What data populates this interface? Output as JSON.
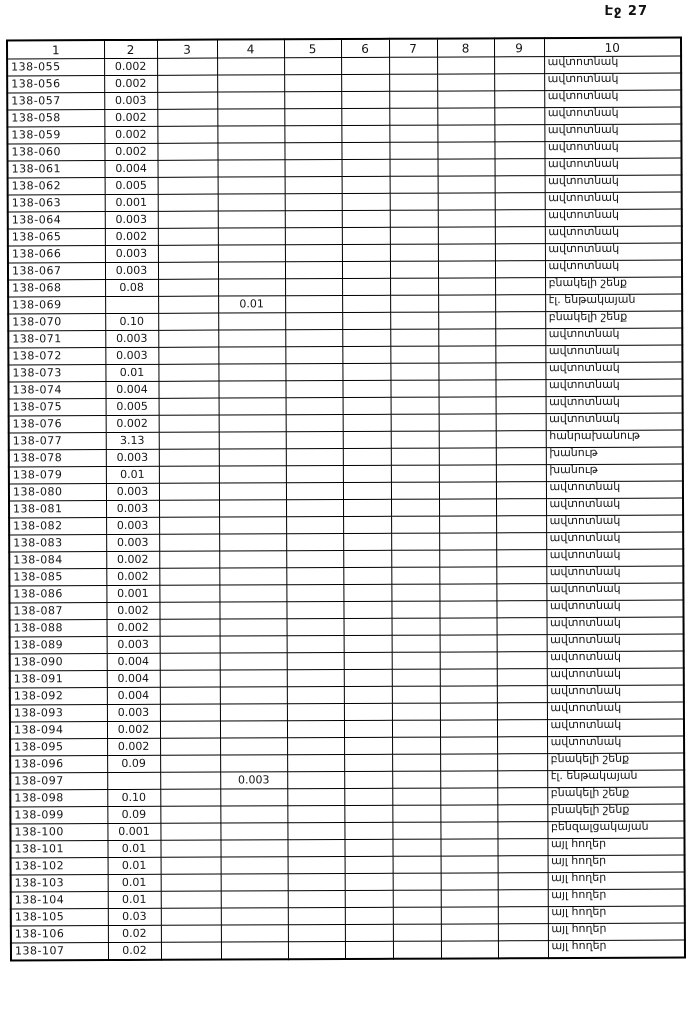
{
  "page_label": "Էջ 27",
  "table": {
    "headers": [
      "1",
      "2",
      "3",
      "4",
      "5",
      "6",
      "7",
      "8",
      "9",
      "10"
    ],
    "rows": [
      {
        "id": "138-055",
        "c2": "0.002",
        "c4": "",
        "c10": "ավտոտնակ"
      },
      {
        "id": "138-056",
        "c2": "0.002",
        "c4": "",
        "c10": "ավտոտնակ"
      },
      {
        "id": "138-057",
        "c2": "0.003",
        "c4": "",
        "c10": "ավտոտնակ"
      },
      {
        "id": "138-058",
        "c2": "0.002",
        "c4": "",
        "c10": "ավտոտնակ"
      },
      {
        "id": "138-059",
        "c2": "0.002",
        "c4": "",
        "c10": "ավտոտնակ"
      },
      {
        "id": "138-060",
        "c2": "0.002",
        "c4": "",
        "c10": "ավտոտնակ"
      },
      {
        "id": "138-061",
        "c2": "0.004",
        "c4": "",
        "c10": "ավտոտնակ"
      },
      {
        "id": "138-062",
        "c2": "0.005",
        "c4": "",
        "c10": "ավտոտնակ"
      },
      {
        "id": "138-063",
        "c2": "0.001",
        "c4": "",
        "c10": "ավտոտնակ"
      },
      {
        "id": "138-064",
        "c2": "0.003",
        "c4": "",
        "c10": "ավտոտնակ"
      },
      {
        "id": "138-065",
        "c2": "0.002",
        "c4": "",
        "c10": "ավտոտնակ"
      },
      {
        "id": "138-066",
        "c2": "0.003",
        "c4": "",
        "c10": "ավտոտնակ"
      },
      {
        "id": "138-067",
        "c2": "0.003",
        "c4": "",
        "c10": "ավտոտնակ"
      },
      {
        "id": "138-068",
        "c2": "0.08",
        "c4": "",
        "c10": "բնակելի շենք"
      },
      {
        "id": "138-069",
        "c2": "",
        "c4": "0.01",
        "c10": "էլ. ենթակայան"
      },
      {
        "id": "138-070",
        "c2": "0.10",
        "c4": "",
        "c10": "բնակելի շենք"
      },
      {
        "id": "138-071",
        "c2": "0.003",
        "c4": "",
        "c10": "ավտոտնակ"
      },
      {
        "id": "138-072",
        "c2": "0.003",
        "c4": "",
        "c10": "ավտոտնակ"
      },
      {
        "id": "138-073",
        "c2": "0.01",
        "c4": "",
        "c10": "ավտոտնակ"
      },
      {
        "id": "138-074",
        "c2": "0.004",
        "c4": "",
        "c10": "ավտոտնակ"
      },
      {
        "id": "138-075",
        "c2": "0.005",
        "c4": "",
        "c10": "ավտոտնակ"
      },
      {
        "id": "138-076",
        "c2": "0.002",
        "c4": "",
        "c10": "ավտոտնակ"
      },
      {
        "id": "138-077",
        "c2": "3.13",
        "c4": "",
        "c10": "հանրախանութ"
      },
      {
        "id": "138-078",
        "c2": "0.003",
        "c4": "",
        "c10": "խանութ"
      },
      {
        "id": "138-079",
        "c2": "0.01",
        "c4": "",
        "c10": "խանութ"
      },
      {
        "id": "138-080",
        "c2": "0.003",
        "c4": "",
        "c10": "ավտոտնակ"
      },
      {
        "id": "138-081",
        "c2": "0.003",
        "c4": "",
        "c10": "ավտոտնակ"
      },
      {
        "id": "138-082",
        "c2": "0.003",
        "c4": "",
        "c10": "ավտոտնակ"
      },
      {
        "id": "138-083",
        "c2": "0.003",
        "c4": "",
        "c10": "ավտոտնակ"
      },
      {
        "id": "138-084",
        "c2": "0.002",
        "c4": "",
        "c10": "ավտոտնակ"
      },
      {
        "id": "138-085",
        "c2": "0.002",
        "c4": "",
        "c10": "ավտոտնակ"
      },
      {
        "id": "138-086",
        "c2": "0.001",
        "c4": "",
        "c10": "ավտոտնակ"
      },
      {
        "id": "138-087",
        "c2": "0.002",
        "c4": "",
        "c10": "ավտոտնակ"
      },
      {
        "id": "138-088",
        "c2": "0.002",
        "c4": "",
        "c10": "ավտոտնակ"
      },
      {
        "id": "138-089",
        "c2": "0.003",
        "c4": "",
        "c10": "ավտոտնակ"
      },
      {
        "id": "138-090",
        "c2": "0.004",
        "c4": "",
        "c10": "ավտոտնակ"
      },
      {
        "id": "138-091",
        "c2": "0.004",
        "c4": "",
        "c10": "ավտոտնակ"
      },
      {
        "id": "138-092",
        "c2": "0.004",
        "c4": "",
        "c10": "ավտոտնակ"
      },
      {
        "id": "138-093",
        "c2": "0.003",
        "c4": "",
        "c10": "ավտոտնակ"
      },
      {
        "id": "138-094",
        "c2": "0.002",
        "c4": "",
        "c10": "ավտոտնակ"
      },
      {
        "id": "138-095",
        "c2": "0.002",
        "c4": "",
        "c10": "ավտոտնակ"
      },
      {
        "id": "138-096",
        "c2": "0.09",
        "c4": "",
        "c10": "բնակելի շենք"
      },
      {
        "id": "138-097",
        "c2": "",
        "c4": "0.003",
        "c10": "էլ. ենթակայան"
      },
      {
        "id": "138-098",
        "c2": "0.10",
        "c4": "",
        "c10": "բնակելի շենք"
      },
      {
        "id": "138-099",
        "c2": "0.09",
        "c4": "",
        "c10": "բնակելի շենք"
      },
      {
        "id": "138-100",
        "c2": "0.001",
        "c4": "",
        "c10": "բենզալցակայան"
      },
      {
        "id": "138-101",
        "c2": "0.01",
        "c4": "",
        "c10": "այլ հողեր"
      },
      {
        "id": "138-102",
        "c2": "0.01",
        "c4": "",
        "c10": "այլ հողեր"
      },
      {
        "id": "138-103",
        "c2": "0.01",
        "c4": "",
        "c10": "այլ հողեր"
      },
      {
        "id": "138-104",
        "c2": "0.01",
        "c4": "",
        "c10": "այլ հողեր"
      },
      {
        "id": "138-105",
        "c2": "0.03",
        "c4": "",
        "c10": "այլ հողեր"
      },
      {
        "id": "138-106",
        "c2": "0.02",
        "c4": "",
        "c10": "այլ հողեր"
      },
      {
        "id": "138-107",
        "c2": "0.02",
        "c4": "",
        "c10": "այլ հողեր"
      }
    ]
  }
}
